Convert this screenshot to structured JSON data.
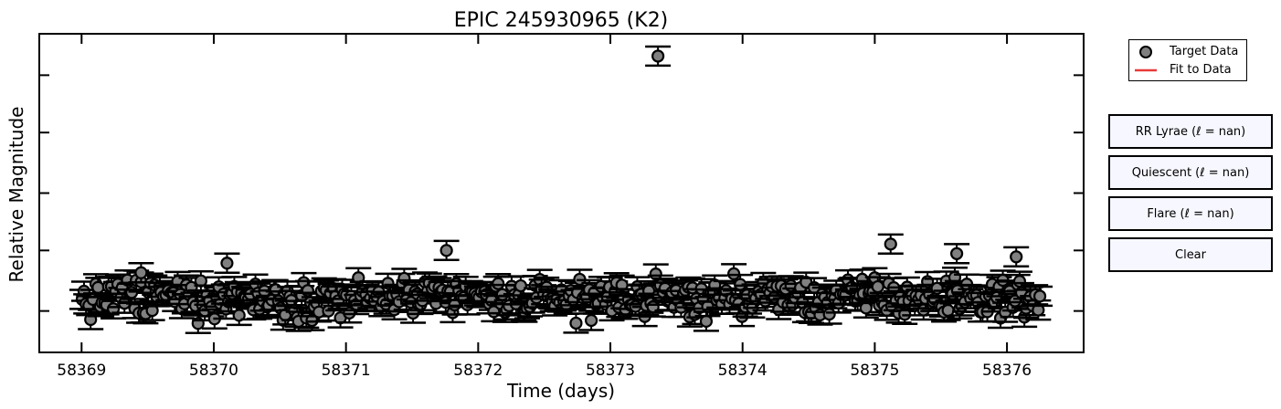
{
  "chart_data": {
    "type": "scatter",
    "title": "EPIC 245930965 (K2)",
    "xlabel": "Time (days)",
    "ylabel": "Relative Magnitude",
    "xlim": [
      58368.68,
      58376.58
    ],
    "ylim": [
      0,
      1
    ],
    "xticks": [
      58369,
      58370,
      58371,
      58372,
      58373,
      58374,
      58375,
      58376
    ],
    "xtick_labels": [
      "58369",
      "58370",
      "58371",
      "58372",
      "58373",
      "58374",
      "58375",
      "58376"
    ],
    "yticks": [
      0.13,
      0.32,
      0.5,
      0.69,
      0.87
    ],
    "error_halfwidth": 0.03,
    "grid": false,
    "legend_position": "upper-right outside",
    "series": [
      {
        "name": "Target Data",
        "marker": "circle",
        "color": "#808080",
        "edge": "#000000",
        "n_points": 420,
        "y_base": 0.17,
        "y_spread": 0.08,
        "outliers": [
          {
            "x": 58373.36,
            "y": 0.93
          },
          {
            "x": 58371.76,
            "y": 0.32
          },
          {
            "x": 58375.12,
            "y": 0.34
          },
          {
            "x": 58375.62,
            "y": 0.31
          },
          {
            "x": 58369.45,
            "y": 0.25
          },
          {
            "x": 58370.1,
            "y": 0.28
          },
          {
            "x": 58376.07,
            "y": 0.3
          }
        ]
      },
      {
        "name": "Fit to Data",
        "type": "line",
        "color": "#e83a3a",
        "values": []
      }
    ]
  },
  "legend": {
    "items": [
      "Target Data",
      "Fit to Data"
    ]
  },
  "buttons": {
    "rr_lyrae": "RR Lyrae (ℓ = nan)",
    "quiescent": "Quiescent (ℓ = nan)",
    "flare": "Flare (ℓ = nan)",
    "clear": "Clear"
  }
}
